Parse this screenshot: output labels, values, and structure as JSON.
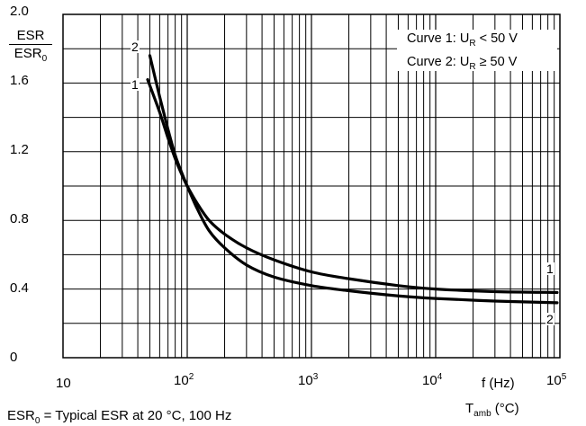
{
  "chart_data": {
    "type": "line",
    "title": "",
    "ylabel_num": "ESR",
    "ylabel_den": "ESR",
    "ylabel_den_sub": "0",
    "xlabel": "f (Hz)",
    "xlabel2_main": "T",
    "xlabel2_sub": "amb",
    "xlabel2_unit": " (°C)",
    "x_scale": "log",
    "xlim": [
      10,
      100000
    ],
    "ylim": [
      0,
      2.0
    ],
    "grid": true,
    "legend_placement": "top-right",
    "y_ticks": [
      "0",
      "0.4",
      "0.8",
      "1.2",
      "1.6",
      "2.0"
    ],
    "x_ticks": [
      {
        "base": "10",
        "exp": ""
      },
      {
        "base": "10",
        "exp": "2"
      },
      {
        "base": "10",
        "exp": "3"
      },
      {
        "base": "10",
        "exp": "4"
      },
      {
        "base": "10",
        "exp": "5"
      }
    ],
    "legend": [
      {
        "pre": "Curve 1: U",
        "sub": "R",
        "post": " < 50 V"
      },
      {
        "pre": "Curve 2: U",
        "sub": "R",
        "post": " ≥ 50 V"
      }
    ],
    "footnote": {
      "pre": "ESR",
      "sub": "0",
      "post": " = Typical ESR at 20 °C, 100 Hz"
    },
    "series": [
      {
        "name": "1",
        "x": [
          48,
          60,
          70,
          80,
          90,
          100,
          120,
          150,
          200,
          300,
          500,
          1000,
          2000,
          5000,
          10000,
          30000,
          95000
        ],
        "y": [
          1.62,
          1.43,
          1.28,
          1.16,
          1.07,
          1.0,
          0.9,
          0.8,
          0.72,
          0.64,
          0.57,
          0.5,
          0.46,
          0.42,
          0.4,
          0.385,
          0.38
        ]
      },
      {
        "name": "2",
        "x": [
          50,
          60,
          70,
          80,
          90,
          100,
          120,
          150,
          200,
          300,
          500,
          1000,
          2000,
          5000,
          10000,
          30000,
          95000
        ],
        "y": [
          1.76,
          1.52,
          1.33,
          1.18,
          1.08,
          1.0,
          0.87,
          0.74,
          0.64,
          0.54,
          0.47,
          0.42,
          0.39,
          0.36,
          0.345,
          0.33,
          0.32
        ]
      }
    ],
    "curve_labels_right": [
      "1",
      "2"
    ]
  }
}
